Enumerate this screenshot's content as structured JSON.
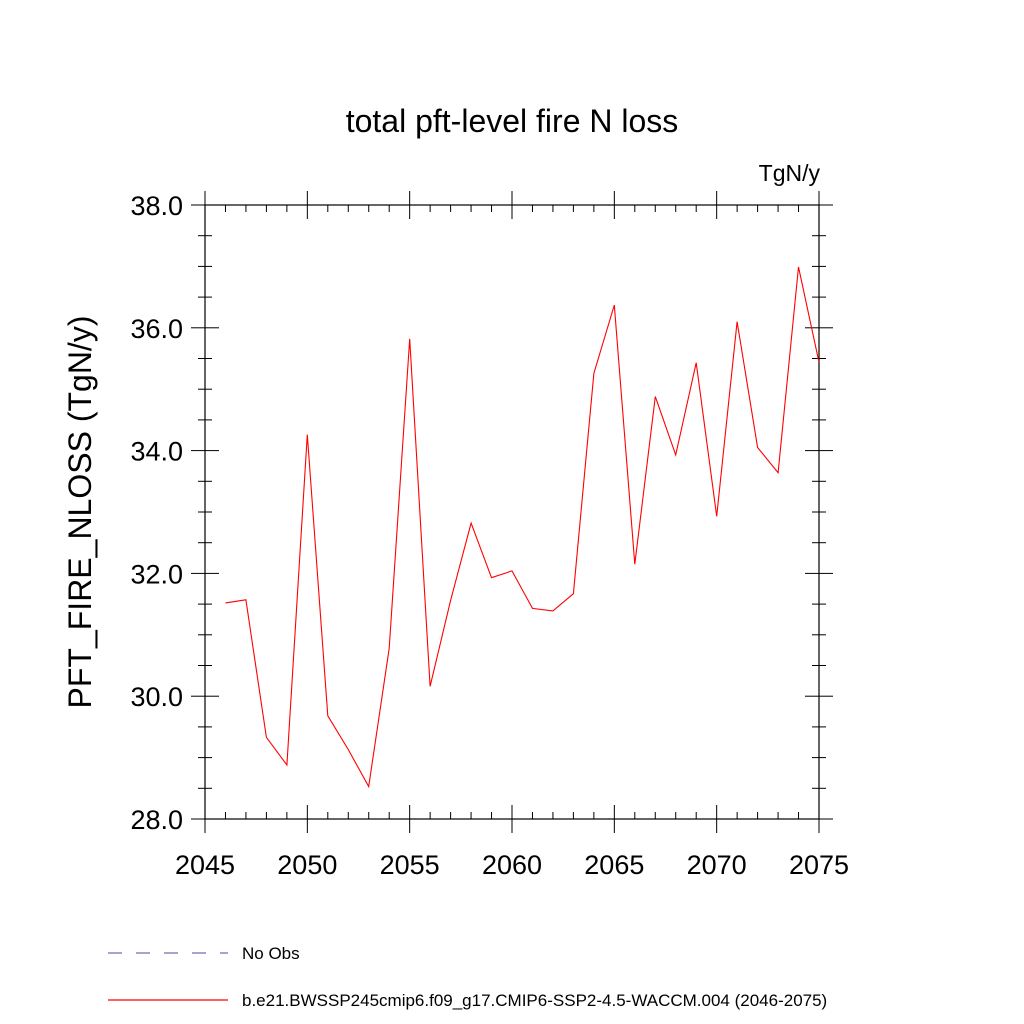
{
  "chart_data": {
    "type": "line",
    "title": "total pft-level fire N loss",
    "units_label": "TgN/y",
    "ylabel": "PFT_FIRE_NLOSS  (TgN/y)",
    "xlabel": "",
    "xlim": [
      2045,
      2075
    ],
    "ylim": [
      28.0,
      38.0
    ],
    "x_ticks": [
      "2045",
      "2050",
      "2055",
      "2060",
      "2065",
      "2070",
      "2075"
    ],
    "y_ticks": [
      "28.0",
      "30.0",
      "32.0",
      "34.0",
      "36.0",
      "38.0"
    ],
    "grid": false,
    "legend_position": "bottom",
    "colors": {
      "model": "#ff0000",
      "obs": "#7b68b0"
    },
    "legend": [
      {
        "label": "No Obs",
        "style": "dashed"
      },
      {
        "label": "b.e21.BWSSP245cmip6.f09_g17.CMIP6-SSP2-4.5-WACCM.004 (2046-2075)",
        "style": "solid"
      }
    ],
    "series": [
      {
        "name": "b.e21.BWSSP245cmip6.f09_g17.CMIP6-SSP2-4.5-WACCM.004 (2046-2075)",
        "x": [
          2046,
          2047,
          2048,
          2049,
          2050,
          2051,
          2052,
          2053,
          2054,
          2055,
          2056,
          2057,
          2058,
          2059,
          2060,
          2061,
          2062,
          2063,
          2064,
          2065,
          2066,
          2067,
          2068,
          2069,
          2070,
          2071,
          2072,
          2073,
          2074,
          2075
        ],
        "values": [
          31.52,
          31.57,
          29.33,
          28.88,
          34.26,
          29.68,
          29.13,
          28.53,
          30.78,
          35.82,
          30.16,
          31.56,
          32.82,
          31.93,
          32.04,
          31.43,
          31.39,
          31.67,
          35.26,
          36.37,
          32.15,
          34.88,
          33.93,
          35.43,
          32.93,
          36.1,
          34.05,
          33.64,
          36.99,
          35.44
        ]
      }
    ]
  }
}
